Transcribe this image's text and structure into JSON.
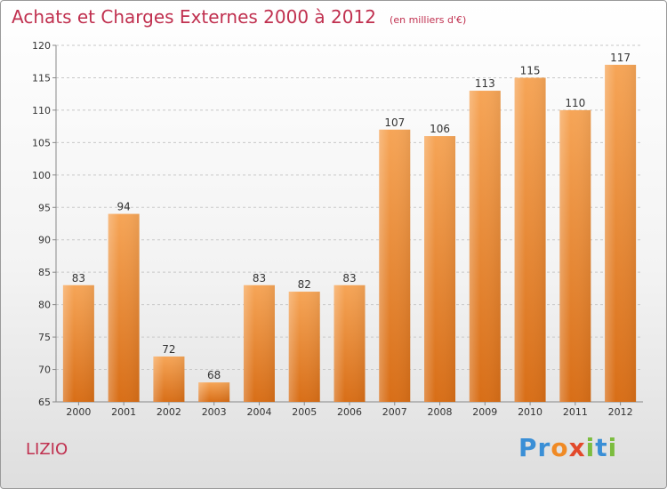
{
  "title": "Achats et Charges Externes 2000 à 2012",
  "unit": "(en milliers d'€)",
  "place": "LIZIO",
  "logo": {
    "letters": [
      "P",
      "r",
      "o",
      "x",
      "i",
      "t",
      "i"
    ],
    "colors": [
      "#3a8fd6",
      "#3a8fd6",
      "#f08a24",
      "#e2492b",
      "#7cbd3f",
      "#3a8fd6",
      "#7cbd3f"
    ]
  },
  "colors": {
    "bar_top": "#f6a557",
    "bar_bottom": "#d86e17",
    "title": "#c0304f"
  },
  "chart_data": {
    "type": "bar",
    "categories": [
      "2000",
      "2001",
      "2002",
      "2003",
      "2004",
      "2005",
      "2006",
      "2007",
      "2008",
      "2009",
      "2010",
      "2011",
      "2012"
    ],
    "values": [
      83,
      94,
      72,
      68,
      83,
      82,
      83,
      107,
      106,
      113,
      115,
      110,
      117
    ],
    "ylim": [
      65,
      120
    ],
    "yticks": [
      65,
      70,
      75,
      80,
      85,
      90,
      95,
      100,
      105,
      110,
      115,
      120
    ],
    "grid": "horizontal dashed",
    "xlabel": "",
    "ylabel": ""
  }
}
